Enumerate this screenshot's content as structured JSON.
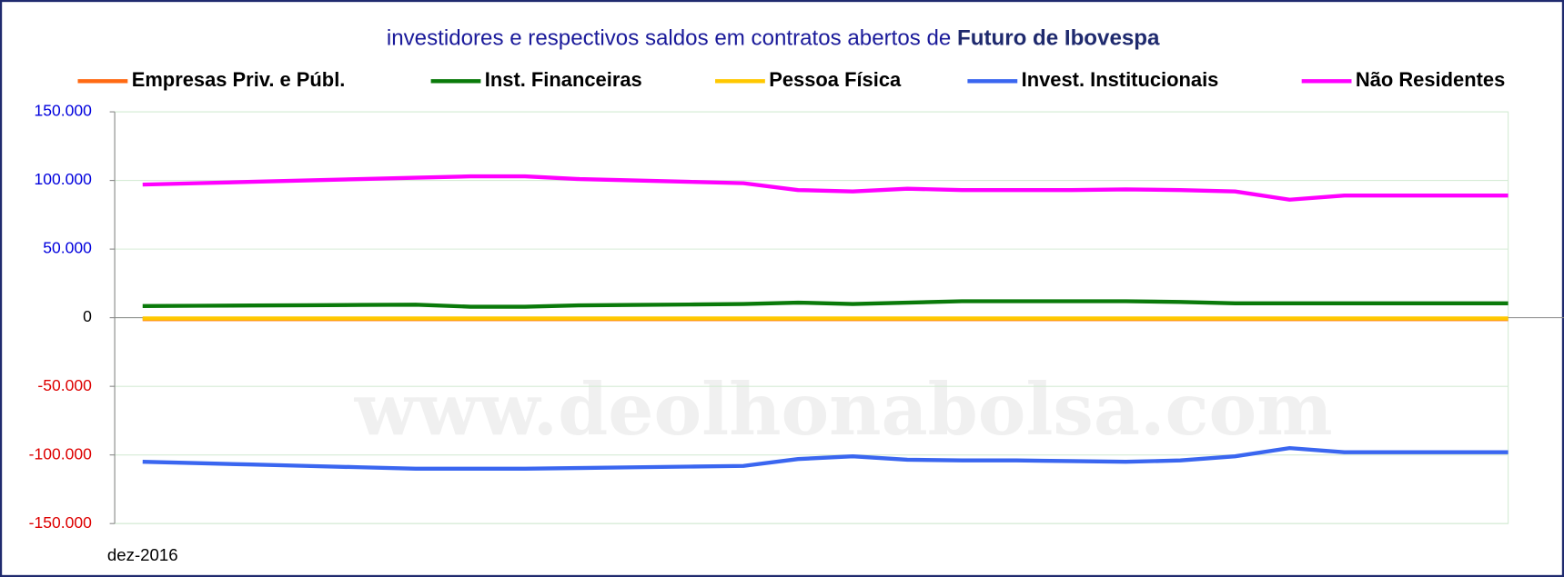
{
  "chart_data": {
    "type": "line",
    "title": "investidores e respectivos saldos em contratos abertos de",
    "title_emphasis": "Futuro de Ibovespa",
    "watermark": "www.deolhonabolsa.com",
    "categories": [
      "dez-2016",
      null,
      null,
      null,
      null,
      null,
      null,
      null,
      null,
      null,
      null,
      null,
      null,
      null,
      null,
      null,
      null,
      null,
      null,
      null,
      null,
      null,
      null,
      null,
      null,
      null
    ],
    "series": [
      {
        "name": "Empresas Priv. e Públ.",
        "color": "#ff6a13",
        "values": [
          -1000,
          -1000,
          -1000,
          -1000,
          -1000,
          -1000,
          -1000,
          -1000,
          -1000,
          -1000,
          -1000,
          -1000,
          -1000,
          -1000,
          -1000,
          -1000,
          -1000,
          -1000,
          -1000,
          -1000,
          -1000,
          -1000,
          -1000,
          -1000,
          -1000,
          -1000
        ]
      },
      {
        "name": "Inst. Financeiras",
        "color": "#0a7a0a",
        "values": [
          8500,
          8700,
          8900,
          9100,
          9300,
          9500,
          8000,
          8000,
          9000,
          9300,
          9600,
          10000,
          11000,
          10000,
          11000,
          12000,
          12000,
          12000,
          12000,
          11500,
          10500,
          10500,
          10500,
          10500,
          10500,
          10500
        ]
      },
      {
        "name": "Pessoa Física",
        "color": "#ffc800",
        "values": [
          -500,
          -500,
          -500,
          -500,
          -500,
          -500,
          -500,
          -500,
          -500,
          -500,
          -500,
          -500,
          -500,
          -500,
          -500,
          -500,
          -500,
          -500,
          -500,
          -500,
          -500,
          -500,
          -500,
          -500,
          -500,
          -500
        ]
      },
      {
        "name": "Invest. Institucionais",
        "color": "#3a66f0",
        "values": [
          -105000,
          -106000,
          -107000,
          -108000,
          -109000,
          -110000,
          -110000,
          -110000,
          -109500,
          -109000,
          -108500,
          -108000,
          -103000,
          -101000,
          -103500,
          -104000,
          -104000,
          -104500,
          -105000,
          -104000,
          -101000,
          -95000,
          -98000,
          -98000,
          -98000,
          -98000
        ]
      },
      {
        "name": "Não Residentes",
        "color": "#ff00ff",
        "values": [
          97000,
          98000,
          99000,
          100000,
          101000,
          102000,
          103000,
          103000,
          101000,
          100000,
          99000,
          98000,
          93000,
          92000,
          94000,
          93000,
          93000,
          93000,
          93500,
          93000,
          92000,
          86000,
          89000,
          89000,
          89000,
          89000
        ]
      }
    ],
    "ylim": [
      -150000,
      150000
    ],
    "yticks": [
      {
        "value": 150000,
        "label": "150.000"
      },
      {
        "value": 100000,
        "label": "100.000"
      },
      {
        "value": 50000,
        "label": "50.000"
      },
      0,
      {
        "value": -50000,
        "label": "-50.000"
      },
      {
        "value": -100000,
        "label": "-100.000"
      },
      {
        "value": -150000,
        "label": "-150.000"
      }
    ],
    "grid": true
  }
}
